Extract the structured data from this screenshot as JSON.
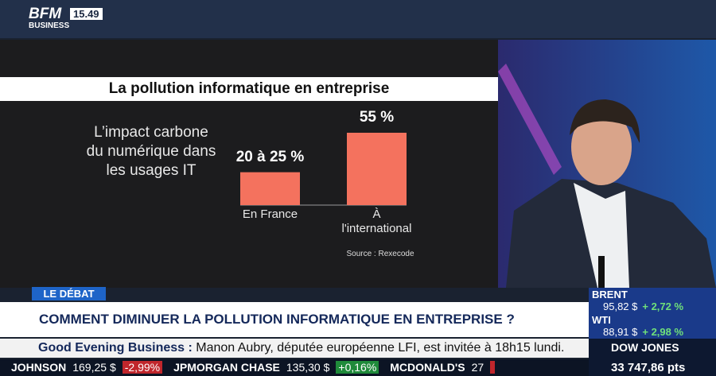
{
  "header": {
    "logo": "BFM",
    "logo_sub": "BUSINESS",
    "time": "15.49"
  },
  "chart_data": {
    "type": "bar",
    "title": "La pollution informatique en entreprise",
    "subtitle": [
      "L’impact carbone",
      "du numérique dans",
      "les usages IT"
    ],
    "categories": [
      "En France",
      "À l'international"
    ],
    "values": [
      25,
      55
    ],
    "value_labels": [
      "20 à 25 %",
      "55 %"
    ],
    "color": "#f4725e",
    "source": "Source : Rexecode"
  },
  "banner": {
    "tag": "LE DÉBAT",
    "headline": "COMMENT DIMINUER LA POLLUTION INFORMATIQUE EN ENTREPRISE ?",
    "ticker_show": "Good Evening Business :",
    "ticker_text": "Manon Aubry, députée européenne LFI, est invitée à 18h15 lundi."
  },
  "stocks": [
    {
      "name": "JOHNSON",
      "price": "169,25 $",
      "change": "-2,99%"
    },
    {
      "name": "JPMORGAN CHASE",
      "price": "135,30 $",
      "change": "+0,16%"
    },
    {
      "name": "MCDONALD'S",
      "price": "27",
      "change": ""
    }
  ],
  "markets": [
    {
      "name": "BRENT",
      "price": "95,82 $",
      "change": "+ 2,72 %"
    },
    {
      "name": "WTI",
      "price": "88,91 $",
      "change": "+ 2,98 %"
    }
  ],
  "index": {
    "name": "DOW JONES",
    "value": "33 747,86 pts"
  }
}
